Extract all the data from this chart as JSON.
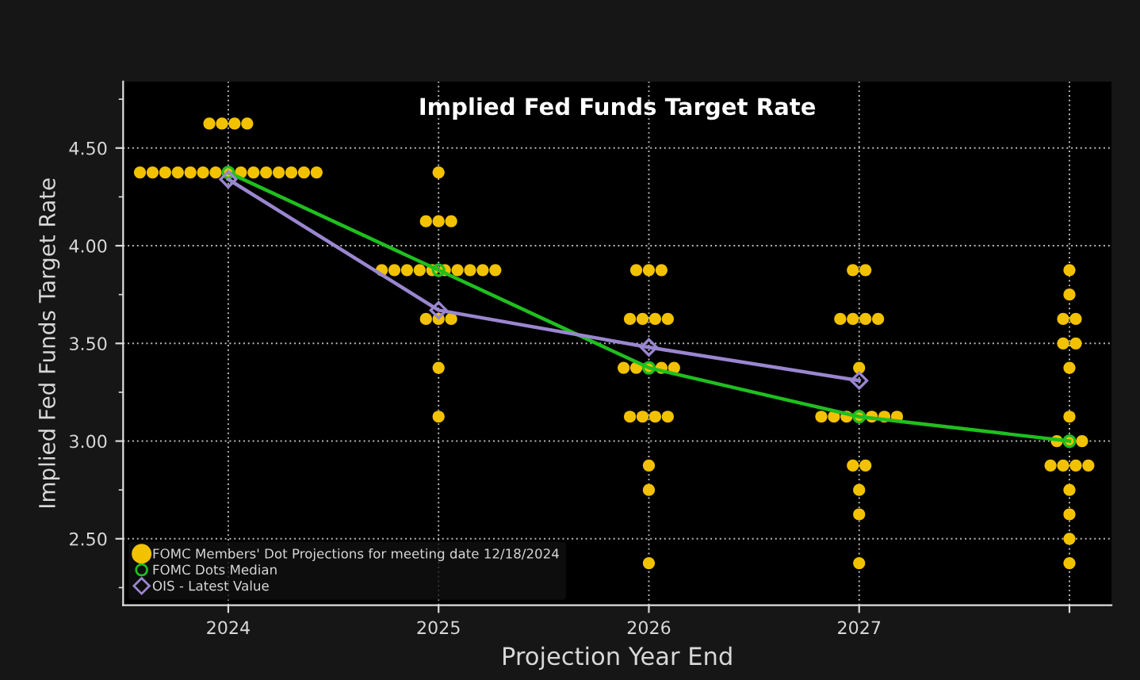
{
  "chart_data": {
    "type": "scatter",
    "title": "Implied Fed Funds Target Rate",
    "xlabel": "Projection Year End",
    "ylabel": "Implied Fed Funds Target Rate",
    "xlim": [
      2023.5,
      2028.2
    ],
    "xticks": [
      2024,
      2025,
      2026,
      2027,
      {
        "value": 2028,
        "label": null
      }
    ],
    "ylim": [
      2.16,
      4.84
    ],
    "yticks": [
      {
        "value": 2.25,
        "label": null
      },
      {
        "value": 2.5,
        "label": "2.50"
      },
      {
        "value": 2.75,
        "label": null
      },
      {
        "value": 3.0,
        "label": "3.00"
      },
      {
        "value": 3.25,
        "label": null
      },
      {
        "value": 3.5,
        "label": "3.50"
      },
      {
        "value": 3.75,
        "label": null
      },
      {
        "value": 4.0,
        "label": "4.00"
      },
      {
        "value": 4.25,
        "label": null
      },
      {
        "value": 4.5,
        "label": "4.50"
      },
      {
        "value": 4.75,
        "label": null
      }
    ],
    "grid": true,
    "legend": "bottom left",
    "series": [
      {
        "name": "FOMC Members' Dot Projections for meeting date 12/18/2024",
        "marker": "circle",
        "color": "#f2c200",
        "x": [
          2023.91,
          2023.97,
          2024.03,
          2024.09,
          2023.58,
          2023.64,
          2023.7,
          2023.76,
          2023.82,
          2023.88,
          2023.94,
          2024.0,
          2024.06,
          2024.12,
          2024.18,
          2024.24,
          2024.3,
          2024.36,
          2024.42,
          2025,
          2024.94,
          2025,
          2025.06,
          2024.73,
          2024.79,
          2024.85,
          2024.91,
          2024.97,
          2025.03,
          2025.09,
          2025.15,
          2025.21,
          2025.27,
          2024.94,
          2025,
          2025.06,
          2025,
          2025,
          2025.94,
          2026,
          2026.06,
          2025.91,
          2025.97,
          2026.03,
          2026.09,
          2025.88,
          2025.94,
          2026,
          2026.06,
          2026.12,
          2025.91,
          2025.97,
          2026.03,
          2026.09,
          2026,
          2026,
          2026,
          2026.97,
          2027.03,
          2026.91,
          2026.97,
          2027.03,
          2027.09,
          2027,
          2026.82,
          2026.88,
          2026.94,
          2027,
          2027.06,
          2027.12,
          2027.18,
          2026.97,
          2027.03,
          2027,
          2027,
          2027,
          2028,
          2028,
          2027.97,
          2028.03,
          2027.97,
          2028.03,
          2028,
          2028,
          2027.94,
          2028,
          2028.06,
          2027.91,
          2027.97,
          2028.03,
          2028.09,
          2028,
          2028,
          2028,
          2028
        ],
        "values": [
          4.625,
          4.625,
          4.625,
          4.625,
          4.375,
          4.375,
          4.375,
          4.375,
          4.375,
          4.375,
          4.375,
          4.375,
          4.375,
          4.375,
          4.375,
          4.375,
          4.375,
          4.375,
          4.375,
          4.375,
          4.125,
          4.125,
          4.125,
          3.875,
          3.875,
          3.875,
          3.875,
          3.875,
          3.875,
          3.875,
          3.875,
          3.875,
          3.875,
          3.625,
          3.625,
          3.625,
          3.375,
          3.125,
          3.875,
          3.875,
          3.875,
          3.625,
          3.625,
          3.625,
          3.625,
          3.375,
          3.375,
          3.375,
          3.375,
          3.375,
          3.125,
          3.125,
          3.125,
          3.125,
          2.875,
          2.75,
          2.375,
          3.875,
          3.875,
          3.625,
          3.625,
          3.625,
          3.625,
          3.375,
          3.125,
          3.125,
          3.125,
          3.125,
          3.125,
          3.125,
          3.125,
          2.875,
          2.875,
          2.75,
          2.625,
          2.375,
          3.875,
          3.75,
          3.625,
          3.625,
          3.5,
          3.5,
          3.375,
          3.125,
          3.0,
          3.0,
          3.0,
          2.875,
          2.875,
          2.875,
          2.875,
          2.75,
          2.625,
          2.5,
          2.375
        ]
      },
      {
        "name": "FOMC Dots Median",
        "type": "line",
        "marker": "circle",
        "color": "#1fbf1f",
        "x": [
          2024,
          2025,
          2026,
          2027,
          2028
        ],
        "values": [
          4.375,
          3.875,
          3.375,
          3.125,
          3.0
        ]
      },
      {
        "name": "OIS - Latest Value",
        "type": "line",
        "marker": "diamond",
        "color": "#9a86d0",
        "x": [
          2024,
          2025,
          2026,
          2027
        ],
        "values": [
          4.34,
          3.67,
          3.48,
          3.31
        ]
      }
    ]
  }
}
